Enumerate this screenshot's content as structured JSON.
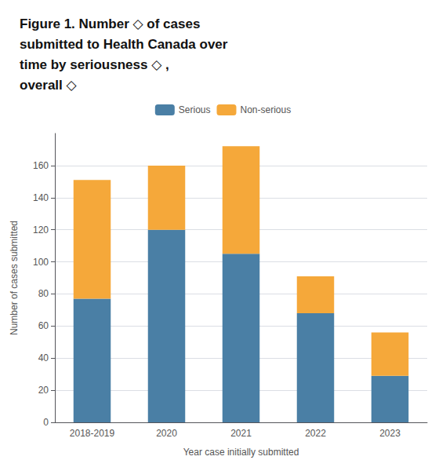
{
  "chart_data": {
    "type": "bar",
    "title": "Figure 1. Number ◇ of cases\nsubmitted to Health Canada over\ntime by seriousness ◇ ,\noverall ◇",
    "xlabel": "Year case initially submitted",
    "ylabel": "Number of cases submitted",
    "categories": [
      "2018-2019",
      "2020",
      "2021",
      "2022",
      "2023"
    ],
    "series": [
      {
        "name": "Serious",
        "color": "#4a7fa5",
        "values": [
          77,
          120,
          105,
          68,
          29
        ]
      },
      {
        "name": "Non-serious",
        "color": "#f5a83a",
        "values": [
          74,
          40,
          67,
          23,
          27
        ]
      }
    ],
    "stacked": true,
    "ylim": [
      0,
      180
    ],
    "yticks": [
      0,
      20,
      40,
      60,
      80,
      100,
      120,
      140,
      160
    ],
    "grid": true,
    "legend": "top"
  }
}
